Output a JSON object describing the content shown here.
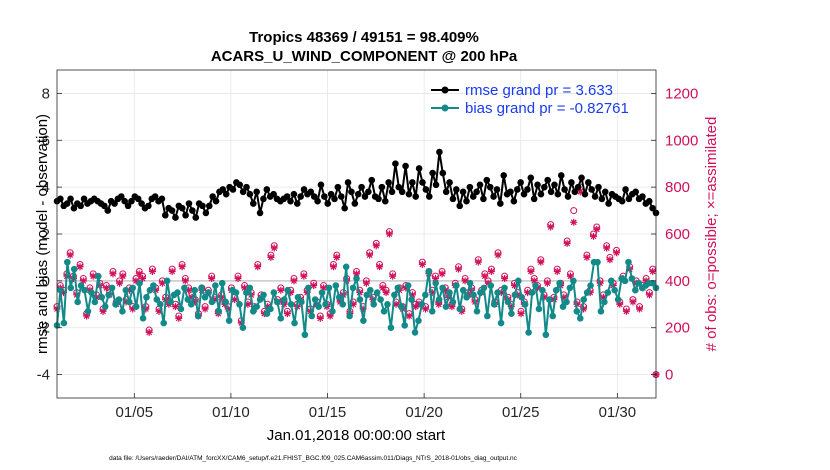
{
  "chart_data": {
    "type": "line",
    "title": "Tropics 48369 / 49151 = 98.409%",
    "subtitle": "ACARS_U_WIND_COMPONENT @ 200 hPa",
    "xlabel": "Jan.01,2018 00:00:00 start",
    "ylabel_left": "rmse and bias (model - observation)",
    "ylabel_right": "# of obs: o=possible; ×=assimilated",
    "xlim": [
      1,
      32
    ],
    "ylim_left": [
      -5,
      9
    ],
    "ylim_right": [
      -100,
      1300
    ],
    "x_ticks": [
      5,
      10,
      15,
      20,
      25,
      30
    ],
    "x_tick_labels": [
      "01/05",
      "01/10",
      "01/15",
      "01/20",
      "01/25",
      "01/30"
    ],
    "y_left_ticks": [
      "-4",
      "-2",
      "0",
      "2",
      "4",
      "6",
      "8"
    ],
    "y_right_ticks": [
      "0",
      "200",
      "400",
      "600",
      "800",
      "1000",
      "1200"
    ],
    "grid": true,
    "legend": [
      "rmse grand pr = 3.633",
      "bias grand pr = -0.82761"
    ],
    "legend_position": "top-right",
    "footnote": "data file: /Users/raeder/DAI/ATM_forcXX/CAM6_setup/f.e21.FHIST_BGC.f09_025.CAM6assim.011/Diags_NTrS_2018-01/obs_diag_output.nc",
    "colors": {
      "rmse": "#000000",
      "bias": "#138a8a",
      "obs": "#d0105a",
      "zero_line": "#c8c8c8"
    },
    "rmse": [
      3.4,
      3.5,
      3.2,
      3.3,
      3.5,
      3.1,
      3.3,
      3.2,
      3.5,
      3.3,
      3.4,
      3.5,
      3.4,
      3.3,
      3.2,
      3.0,
      3.4,
      3.3,
      3.5,
      3.6,
      3.4,
      3.2,
      3.4,
      3.6,
      3.5,
      3.3,
      3.1,
      3.2,
      3.5,
      3.6,
      3.4,
      3.5,
      2.8,
      3.1,
      3.0,
      2.7,
      3.2,
      3.1,
      2.8,
      3.3,
      3.0,
      2.7,
      3.3,
      3.2,
      2.9,
      3.2,
      3.6,
      3.4,
      3.8,
      3.9,
      3.7,
      4.0,
      3.9,
      4.2,
      4.1,
      3.8,
      4.0,
      3.7,
      3.3,
      3.8,
      2.9,
      3.5,
      3.9,
      3.6,
      3.7,
      3.5,
      3.4,
      3.5,
      3.6,
      3.4,
      3.7,
      3.3,
      3.6,
      3.9,
      3.7,
      3.8,
      3.6,
      3.4,
      4.1,
      3.6,
      3.3,
      3.7,
      3.5,
      4.0,
      3.6,
      3.1,
      4.2,
      3.8,
      3.3,
      3.7,
      4.0,
      3.6,
      3.8,
      4.3,
      3.6,
      3.5,
      4.0,
      3.4,
      4.2,
      3.8,
      5.0,
      4.0,
      3.8,
      4.9,
      3.7,
      4.2,
      3.6,
      4.8,
      4.2,
      3.9,
      3.6,
      4.6,
      4.1,
      5.5,
      4.6,
      3.8,
      4.2,
      3.5,
      3.9,
      3.2,
      3.8,
      3.4,
      4.0,
      3.6,
      3.8,
      4.1,
      3.5,
      4.3,
      4.0,
      3.6,
      3.9,
      3.3,
      4.5,
      3.7,
      3.8,
      3.4,
      3.9,
      4.2,
      3.7,
      3.9,
      4.4,
      3.5,
      4.1,
      3.7,
      4.0,
      4.3,
      3.8,
      4.1,
      3.7,
      4.5,
      3.9,
      3.6,
      4.2,
      3.8,
      4.0,
      4.4,
      3.7,
      4.2,
      3.9,
      3.6,
      4.0,
      3.5,
      3.8,
      3.3,
      3.7,
      3.6,
      3.5,
      3.4,
      3.9,
      3.5,
      3.7,
      3.8,
      3.5,
      3.6,
      3.3,
      3.4,
      3.1,
      2.9
    ],
    "bias": [
      -1.9,
      -0.4,
      -1.8,
      0.8,
      -0.3,
      0.5,
      -0.9,
      -0.2,
      -0.4,
      -1.3,
      -0.5,
      -0.9,
      0.2,
      -0.7,
      -1.1,
      -0.6,
      -0.3,
      -1.0,
      -0.8,
      -1.3,
      -0.4,
      -0.9,
      -0.3,
      -1.1,
      -0.1,
      -1.6,
      -0.7,
      -0.4,
      -0.2,
      -0.8,
      -1.0,
      -1.8,
      0.0,
      -0.9,
      -0.6,
      -0.5,
      -1.2,
      -0.3,
      -0.8,
      -1.0,
      -0.4,
      -1.5,
      -0.3,
      -0.7,
      -0.5,
      -0.9,
      -0.2,
      -1.3,
      -0.1,
      -0.9,
      -1.7,
      -0.4,
      -0.5,
      -1.0,
      -2.0,
      -0.5,
      -0.3,
      -1.3,
      -1.1,
      -0.8,
      -0.6,
      -1.4,
      -1.2,
      -0.5,
      -0.9,
      -1.6,
      -0.8,
      -0.4,
      -1.0,
      -1.8,
      -0.7,
      -0.9,
      -2.3,
      -0.3,
      -1.5,
      -0.8,
      -1.1,
      -0.5,
      -1.0,
      -0.3,
      -1.3,
      -0.2,
      -0.7,
      -1.0,
      0.6,
      -1.5,
      -0.3,
      0.1,
      -0.8,
      -1.7,
      -0.6,
      -0.4,
      -1.0,
      -0.5,
      -0.8,
      -1.3,
      -1.0,
      -2.0,
      -0.6,
      -0.3,
      -1.1,
      -1.9,
      -0.2,
      -0.8,
      -2.2,
      -1.7,
      -1.0,
      -0.6,
      0.4,
      -1.3,
      -0.1,
      -0.8,
      -0.3,
      -1.1,
      -0.5,
      -0.9,
      -0.2,
      -1.2,
      -0.4,
      -0.7,
      -0.1,
      -0.6,
      -1.3,
      -0.5,
      -0.3,
      -1.5,
      -0.2,
      -1.0,
      -0.5,
      -1.8,
      -0.3,
      -0.9,
      -1.4,
      -0.6,
      0.0,
      -0.7,
      -1.0,
      -2.2,
      -0.5,
      -0.2,
      -1.2,
      -0.4,
      -2.3,
      -0.8,
      -1.5,
      -0.4,
      -0.1,
      -1.1,
      -0.9,
      -0.3,
      0.0,
      -1.3,
      -1.6,
      -0.8,
      -0.5,
      -0.2,
      0.8,
      0.8,
      -1.3,
      -0.9,
      -0.5,
      0.0,
      -0.4,
      -0.8,
      0.1,
      0.0,
      0.8,
      0.1,
      -0.4,
      -0.1,
      -0.3,
      -0.2,
      -0.1,
      -0.1,
      -0.3
    ],
    "obs_assimilated": [
      280,
      370,
      350,
      420,
      510,
      410,
      340,
      460,
      400,
      250,
      360,
      420,
      330,
      380,
      270,
      370,
      340,
      430,
      300,
      390,
      420,
      310,
      360,
      280,
      400,
      430,
      410,
      280,
      180,
      440,
      360,
      270,
      390,
      320,
      300,
      440,
      290,
      240,
      460,
      400,
      360,
      330,
      310,
      250,
      360,
      280,
      350,
      410,
      320,
      260,
      330,
      300,
      280,
      360,
      320,
      410,
      220,
      370,
      300,
      340,
      280,
      460,
      330,
      260,
      290,
      500,
      540,
      310,
      360,
      300,
      260,
      350,
      400,
      290,
      320,
      420,
      350,
      270,
      380,
      300,
      240,
      370,
      290,
      250,
      460,
      500,
      310,
      340,
      400,
      260,
      300,
      430,
      350,
      280,
      390,
      510,
      320,
      550,
      460,
      370,
      350,
      600,
      420,
      300,
      360,
      280,
      370,
      250,
      340,
      290,
      300,
      470,
      280,
      430,
      350,
      410,
      300,
      430,
      360,
      330,
      290,
      380,
      450,
      270,
      400,
      340,
      360,
      310,
      480,
      350,
      420,
      390,
      440,
      300,
      510,
      350,
      410,
      320,
      290,
      380,
      340,
      260,
      300,
      350,
      440,
      400,
      370,
      480,
      330,
      390,
      630,
      320,
      440,
      380,
      330,
      560,
      420,
      650,
      300,
      780,
      280,
      500,
      350,
      590,
      620,
      390,
      330,
      540,
      490,
      380,
      520,
      300,
      410,
      270,
      450,
      310,
      390,
      280,
      370,
      400,
      340,
      440,
      0
    ],
    "obs_possible": [
      290,
      380,
      360,
      430,
      520,
      420,
      350,
      470,
      410,
      260,
      370,
      430,
      340,
      390,
      280,
      380,
      350,
      440,
      310,
      400,
      430,
      320,
      370,
      290,
      410,
      440,
      420,
      290,
      190,
      450,
      370,
      280,
      400,
      330,
      310,
      450,
      300,
      250,
      470,
      410,
      370,
      340,
      320,
      260,
      370,
      290,
      360,
      420,
      330,
      270,
      340,
      310,
      290,
      370,
      330,
      420,
      230,
      380,
      310,
      350,
      290,
      470,
      340,
      270,
      300,
      510,
      550,
      320,
      370,
      310,
      270,
      360,
      410,
      300,
      330,
      430,
      360,
      280,
      390,
      310,
      250,
      380,
      300,
      260,
      470,
      510,
      320,
      350,
      410,
      270,
      310,
      440,
      360,
      290,
      400,
      520,
      330,
      560,
      470,
      380,
      360,
      610,
      430,
      310,
      370,
      290,
      380,
      260,
      350,
      300,
      310,
      480,
      290,
      440,
      360,
      420,
      310,
      440,
      370,
      340,
      300,
      390,
      460,
      280,
      410,
      350,
      370,
      320,
      490,
      360,
      430,
      400,
      450,
      310,
      520,
      360,
      420,
      330,
      300,
      390,
      350,
      270,
      310,
      360,
      450,
      410,
      380,
      490,
      340,
      400,
      640,
      330,
      450,
      390,
      340,
      570,
      430,
      700,
      310,
      800,
      290,
      510,
      360,
      600,
      630,
      400,
      340,
      550,
      500,
      390,
      530,
      310,
      420,
      280,
      460,
      320,
      400,
      290,
      380,
      410,
      350,
      450,
      0
    ]
  }
}
